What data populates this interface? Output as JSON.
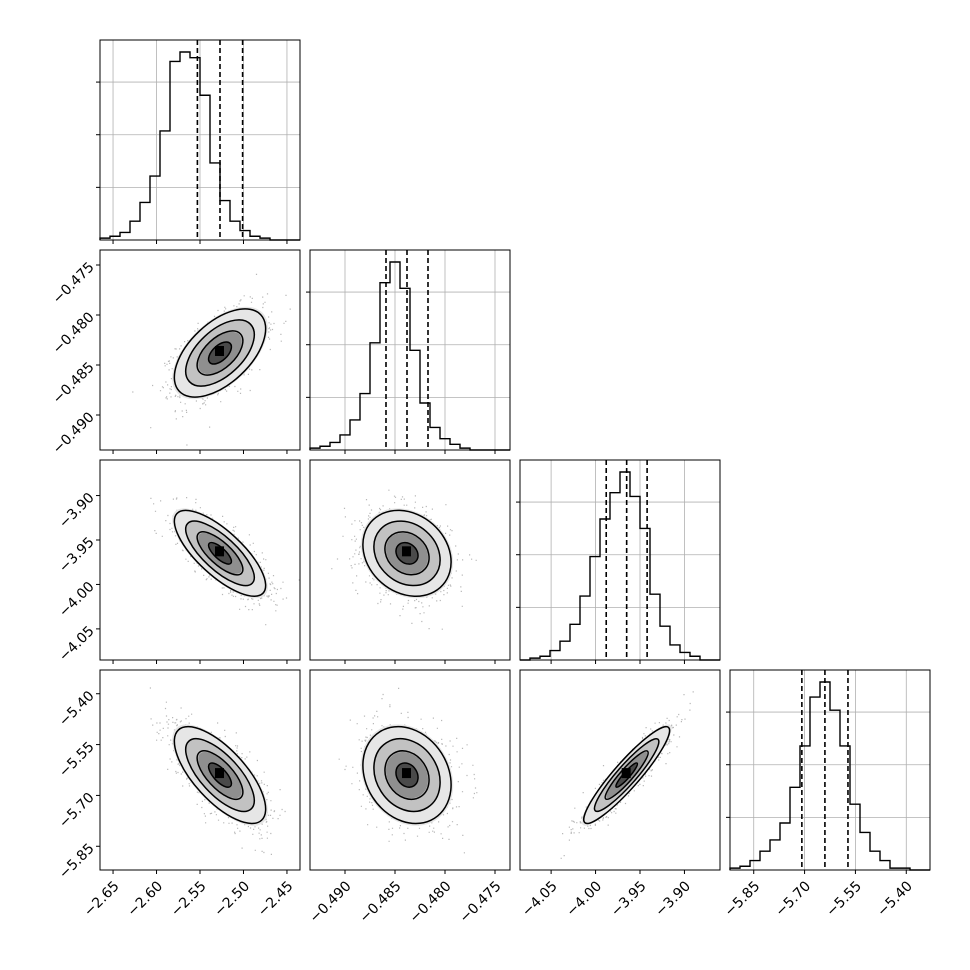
{
  "chart_data": {
    "type": "corner",
    "parameters": [
      {
        "range": [
          -2.665,
          -2.435
        ],
        "ticks": [
          -2.65,
          -2.6,
          -2.55,
          -2.5,
          -2.45
        ],
        "tick_labels": [
          "−2.65",
          "−2.60",
          "−2.55",
          "−2.50",
          "−2.45"
        ],
        "mean": -2.527,
        "sigma": 0.025,
        "quantiles": [
          -2.553,
          -2.527,
          -2.501
        ],
        "hist_counts": [
          1,
          2,
          4,
          10,
          20,
          34,
          58,
          95,
          100,
          97,
          77,
          41,
          21,
          10,
          5,
          2,
          1,
          0,
          0,
          0
        ]
      },
      {
        "range": [
          -0.4935,
          -0.4735
        ],
        "ticks": [
          -0.49,
          -0.485,
          -0.48,
          -0.475
        ],
        "tick_labels": [
          "−0.490",
          "−0.485",
          "−0.480",
          "−0.475"
        ],
        "mean": -0.4838,
        "sigma": 0.0021,
        "quantiles": [
          -0.4859,
          -0.4838,
          -0.4817
        ],
        "hist_counts": [
          1,
          2,
          4,
          8,
          16,
          30,
          57,
          89,
          100,
          86,
          53,
          25,
          12,
          6,
          3,
          1,
          0,
          0,
          0,
          0
        ]
      },
      {
        "range": [
          -4.085,
          -3.86
        ],
        "ticks": [
          -4.05,
          -4.0,
          -3.95,
          -3.9
        ],
        "tick_labels": [
          "−4.05",
          "−4.00",
          "−3.95",
          "−3.90"
        ],
        "mean": -3.965,
        "sigma": 0.023,
        "quantiles": [
          -3.988,
          -3.965,
          -3.942
        ],
        "hist_counts": [
          0,
          1,
          2,
          5,
          10,
          19,
          34,
          55,
          75,
          89,
          100,
          87,
          70,
          35,
          18,
          8,
          4,
          2,
          0,
          0
        ]
      },
      {
        "range": [
          -5.92,
          -5.33
        ],
        "ticks": [
          -5.85,
          -5.7,
          -5.55,
          -5.4
        ],
        "tick_labels": [
          "−5.85",
          "−5.70",
          "−5.55",
          "−5.40"
        ],
        "mean": -5.64,
        "sigma": 0.068,
        "quantiles": [
          -5.708,
          -5.64,
          -5.572
        ],
        "hist_counts": [
          1,
          2,
          5,
          10,
          16,
          25,
          44,
          66,
          92,
          100,
          85,
          66,
          35,
          20,
          10,
          5,
          1,
          1,
          0,
          0
        ]
      }
    ],
    "correlations": [
      [
        1,
        0.55,
        -0.75,
        -0.7
      ],
      [
        0.55,
        1,
        -0.2,
        -0.2
      ],
      [
        -0.75,
        -0.2,
        1,
        0.92
      ],
      [
        -0.7,
        -0.2,
        0.92,
        1
      ]
    ],
    "contour_levels_sigma": [
      0.5,
      1.0,
      1.5,
      2.0
    ],
    "grid": true
  }
}
